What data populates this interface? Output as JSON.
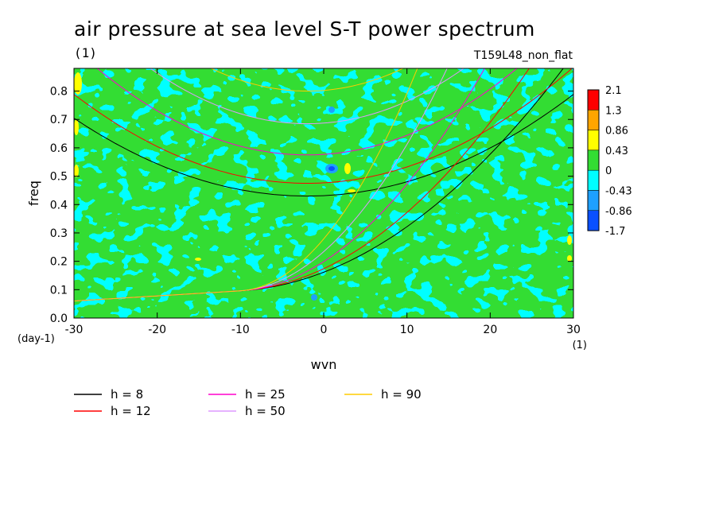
{
  "title": "air pressure at sea level S-T power spectrum",
  "units_top": "(1)",
  "experiment": "T159L48_non_flat",
  "chart_data": {
    "type": "heatmap",
    "title": "air pressure at sea level S-T power spectrum",
    "xlabel": "wvn",
    "ylabel": "freq",
    "x_unit": "(1)",
    "y_unit": "(day-1)",
    "xlim": [
      -30,
      30
    ],
    "ylim": [
      0.0,
      0.88
    ],
    "x_ticks": [
      -30,
      -20,
      -10,
      0,
      10,
      20,
      30
    ],
    "x_tick_labels": [
      "-30",
      "-20",
      "-10",
      "0",
      "10",
      "20",
      "30"
    ],
    "y_ticks": [
      0.0,
      0.1,
      0.2,
      0.3,
      0.4,
      0.5,
      0.6,
      0.7,
      0.8
    ],
    "y_tick_labels": [
      "0.0",
      "0.1",
      "0.2",
      "0.3",
      "0.4",
      "0.5",
      "0.6",
      "0.7",
      "0.8"
    ],
    "colorbar": {
      "levels": [
        "2.1",
        "1.3",
        "0.86",
        "0.43",
        "0",
        "-0.43",
        "-0.86",
        "-1.7"
      ],
      "colors": [
        "#ff0000",
        "#ffa500",
        "#ffff00",
        "#33dd33",
        "#00ffff",
        "#1ea0ff",
        "#0a50ff"
      ]
    },
    "field_colors": {
      "green": "#33dd33",
      "cyan": "#00ffff",
      "yellow": "#ffff00",
      "blue": "#1ea0ff",
      "dark_blue": "#0a50ff"
    },
    "dispersion_curves": [
      {
        "name": "h =  8",
        "color": "#000000"
      },
      {
        "name": "h = 12",
        "color": "#ff0000"
      },
      {
        "name": "h = 25",
        "color": "#ff00cc"
      },
      {
        "name": "h = 50",
        "color": "#dd99ff"
      },
      {
        "name": "h = 90",
        "color": "#ffcc00"
      }
    ]
  }
}
